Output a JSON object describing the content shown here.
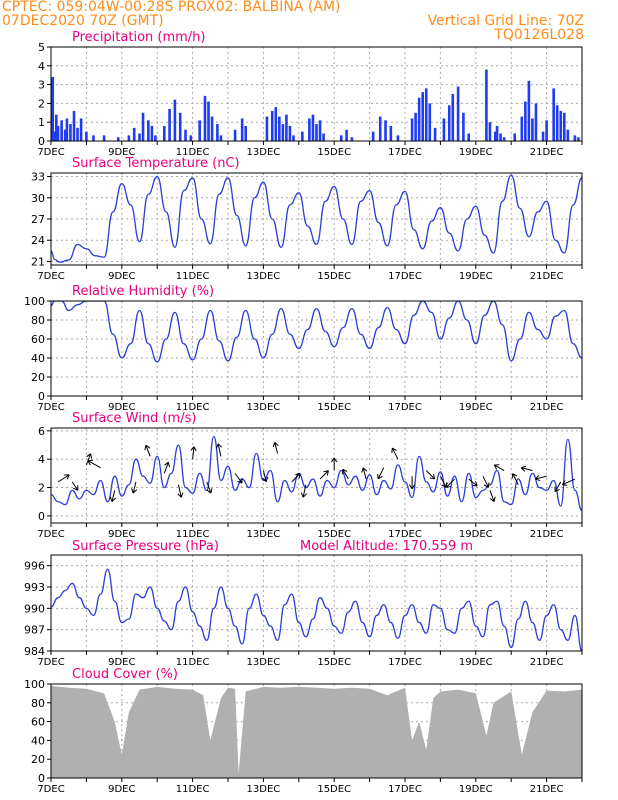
{
  "header": {
    "line1_left": "CPTEC:   059:04W-00:28S   PROX02: BALBINA (AM)",
    "line2_left": "07DEC2020 70Z (GMT)",
    "line2_right": "Vertical Grid Line: 70Z",
    "line3_right": "TQ0126L028"
  },
  "colors": {
    "header": "#ff8c1a",
    "title": "#e6007e",
    "line": "#2b3fd6",
    "bar": "#1f3cf0",
    "cloud": "#b0b0b0",
    "grid": "#aaaaaa"
  },
  "x_axis": {
    "start_day": 7,
    "end_day": 22,
    "labels": [
      "7DEC",
      "9DEC",
      "11DEC",
      "13DEC",
      "15DEC",
      "17DEC",
      "19DEC",
      "21DEC"
    ],
    "label_days": [
      7,
      9,
      11,
      13,
      15,
      17,
      19,
      21
    ]
  },
  "chart_data": [
    {
      "id": "precip",
      "type": "bar",
      "title": "Precipitation  (mm/h)",
      "ylim": [
        0,
        5
      ],
      "yticks": [
        0,
        1,
        2,
        3,
        4,
        5
      ],
      "x": [
        7.05,
        7.1,
        7.15,
        7.2,
        7.3,
        7.4,
        7.45,
        7.55,
        7.65,
        7.75,
        7.85,
        8.0,
        8.2,
        8.5,
        8.9,
        9.2,
        9.35,
        9.5,
        9.6,
        9.75,
        9.85,
        9.95,
        10.2,
        10.35,
        10.5,
        10.65,
        10.8,
        10.95,
        11.2,
        11.35,
        11.45,
        11.55,
        11.7,
        11.8,
        12.2,
        12.4,
        12.5,
        13.1,
        13.25,
        13.35,
        13.45,
        13.55,
        13.65,
        13.75,
        13.85,
        14.1,
        14.3,
        14.4,
        14.5,
        14.6,
        14.7,
        15.2,
        15.35,
        15.5,
        16.1,
        16.3,
        16.45,
        16.6,
        16.8,
        17.2,
        17.3,
        17.4,
        17.5,
        17.6,
        17.7,
        17.85,
        18.1,
        18.25,
        18.35,
        18.5,
        18.65,
        18.8,
        19.3,
        19.4,
        19.55,
        19.6,
        19.7,
        19.8,
        20.1,
        20.3,
        20.4,
        20.5,
        20.6,
        20.7,
        20.9,
        21.0,
        21.2,
        21.3,
        21.4,
        21.5,
        21.6,
        21.8,
        21.9
      ],
      "values": [
        3.4,
        0.5,
        1.4,
        0.8,
        1.1,
        0.6,
        1.2,
        0.9,
        1.6,
        0.7,
        1.2,
        0.5,
        0.3,
        0.3,
        0.2,
        0.3,
        0.7,
        0.4,
        1.5,
        1.1,
        0.8,
        0.3,
        0.8,
        1.7,
        2.2,
        1.5,
        0.6,
        0.3,
        1.1,
        2.4,
        2.1,
        1.3,
        0.9,
        0.3,
        0.6,
        1.2,
        0.8,
        1.3,
        1.6,
        1.8,
        1.3,
        0.9,
        1.4,
        0.8,
        0.3,
        0.5,
        1.2,
        1.4,
        0.9,
        1.1,
        0.4,
        0.3,
        0.6,
        0.2,
        0.5,
        1.3,
        1.1,
        0.8,
        0.3,
        1.2,
        1.5,
        2.3,
        2.6,
        2.8,
        2.0,
        0.7,
        1.2,
        1.9,
        2.5,
        2.9,
        1.5,
        0.4,
        3.8,
        1.0,
        0.5,
        0.8,
        0.4,
        0.2,
        0.4,
        1.3,
        2.1,
        3.2,
        1.2,
        2.0,
        0.5,
        1.1,
        2.8,
        1.9,
        1.6,
        1.5,
        0.6,
        0.3,
        0.2
      ]
    },
    {
      "id": "temp",
      "type": "line",
      "title": "Surface Temperature (nC)",
      "ylim": [
        20.5,
        33.5
      ],
      "yticks": [
        21,
        24,
        27,
        30,
        33
      ],
      "x": [
        7.0,
        7.1,
        7.25,
        7.5,
        7.75,
        8.0,
        8.25,
        8.5,
        8.75,
        9.0,
        9.25,
        9.5,
        9.75,
        10.0,
        10.25,
        10.5,
        10.75,
        11.0,
        11.25,
        11.5,
        11.75,
        12.0,
        12.25,
        12.5,
        12.75,
        13.0,
        13.25,
        13.5,
        13.75,
        14.0,
        14.25,
        14.5,
        14.75,
        15.0,
        15.25,
        15.5,
        15.75,
        16.0,
        16.25,
        16.5,
        16.75,
        17.0,
        17.25,
        17.5,
        17.75,
        18.0,
        18.25,
        18.5,
        18.75,
        19.0,
        19.25,
        19.5,
        19.75,
        20.0,
        20.25,
        20.5,
        20.75,
        21.0,
        21.25,
        21.5,
        21.75,
        22.0
      ],
      "values": [
        22.5,
        21.3,
        20.9,
        21.2,
        23.4,
        22.8,
        21.8,
        21.6,
        28.0,
        32.0,
        29.0,
        23.8,
        30.5,
        33.0,
        28.0,
        23.0,
        31.0,
        32.8,
        27.0,
        23.5,
        30.5,
        32.8,
        27.5,
        23.2,
        30.0,
        32.2,
        27.0,
        23.0,
        29.0,
        30.7,
        26.0,
        23.4,
        29.5,
        31.6,
        27.0,
        23.4,
        29.5,
        31.0,
        26.5,
        23.2,
        29.0,
        30.9,
        25.5,
        22.8,
        26.7,
        28.6,
        25.0,
        22.5,
        27.0,
        28.8,
        24.7,
        22.2,
        29.5,
        33.2,
        28.5,
        24.5,
        28.0,
        29.5,
        24.0,
        22.2,
        29.0,
        32.8
      ]
    },
    {
      "id": "rh",
      "type": "line",
      "title": "Relative Humidity  (%)",
      "ylim": [
        0,
        100
      ],
      "yticks": [
        0,
        20,
        40,
        60,
        80,
        100
      ],
      "x": [
        7.0,
        7.1,
        7.3,
        7.5,
        7.75,
        8.0,
        8.25,
        8.5,
        8.75,
        9.0,
        9.25,
        9.5,
        9.75,
        10.0,
        10.25,
        10.5,
        10.75,
        11.0,
        11.25,
        11.5,
        11.75,
        12.0,
        12.25,
        12.5,
        12.75,
        13.0,
        13.25,
        13.5,
        13.75,
        14.0,
        14.25,
        14.5,
        14.75,
        15.0,
        15.25,
        15.5,
        15.75,
        16.0,
        16.25,
        16.5,
        16.75,
        17.0,
        17.25,
        17.5,
        17.75,
        18.0,
        18.25,
        18.5,
        18.75,
        19.0,
        19.25,
        19.5,
        19.75,
        20.0,
        20.25,
        20.5,
        20.75,
        21.0,
        21.25,
        21.5,
        21.75,
        22.0
      ],
      "values": [
        95,
        100,
        100,
        90,
        96,
        100,
        100,
        100,
        65,
        40,
        55,
        90,
        55,
        36,
        60,
        88,
        55,
        38,
        60,
        90,
        58,
        37,
        62,
        90,
        60,
        40,
        65,
        92,
        65,
        50,
        70,
        92,
        68,
        52,
        72,
        92,
        65,
        50,
        72,
        93,
        70,
        55,
        85,
        100,
        88,
        60,
        82,
        100,
        80,
        55,
        85,
        100,
        75,
        37,
        60,
        88,
        70,
        60,
        84,
        90,
        55,
        40
      ]
    },
    {
      "id": "wind",
      "type": "line",
      "title": "Surface Wind  (m/s)",
      "ylim": [
        -0.5,
        6.2
      ],
      "yticks": [
        0,
        2,
        4,
        6
      ],
      "x": [
        7.0,
        7.2,
        7.4,
        7.6,
        7.8,
        8.0,
        8.2,
        8.4,
        8.6,
        8.8,
        9.0,
        9.2,
        9.4,
        9.6,
        9.8,
        10.0,
        10.2,
        10.4,
        10.6,
        10.8,
        11.0,
        11.2,
        11.4,
        11.6,
        11.8,
        12.0,
        12.2,
        12.4,
        12.6,
        12.8,
        13.0,
        13.2,
        13.4,
        13.6,
        13.8,
        14.0,
        14.2,
        14.4,
        14.6,
        14.8,
        15.0,
        15.2,
        15.4,
        15.6,
        15.8,
        16.0,
        16.2,
        16.4,
        16.6,
        16.8,
        17.0,
        17.2,
        17.4,
        17.6,
        17.8,
        18.0,
        18.2,
        18.4,
        18.6,
        18.8,
        19.0,
        19.2,
        19.4,
        19.6,
        19.8,
        20.0,
        20.2,
        20.4,
        20.6,
        20.8,
        21.0,
        21.2,
        21.4,
        21.6,
        21.8,
        22.0
      ],
      "values": [
        1.5,
        1.0,
        0.8,
        1.8,
        1.2,
        1.8,
        1.5,
        2.5,
        1.0,
        2.8,
        1.4,
        2.2,
        4.0,
        2.8,
        2.3,
        4.2,
        2.0,
        3.0,
        5.0,
        2.0,
        1.6,
        3.0,
        1.8,
        5.6,
        2.5,
        3.5,
        1.8,
        2.6,
        2.0,
        4.4,
        2.5,
        3.2,
        1.0,
        2.5,
        1.7,
        3.0,
        2.0,
        2.6,
        1.4,
        2.5,
        2.0,
        3.2,
        2.2,
        2.8,
        1.8,
        2.9,
        1.5,
        2.5,
        1.9,
        3.6,
        2.4,
        1.3,
        4.2,
        2.4,
        1.7,
        3.1,
        1.4,
        2.8,
        1.0,
        3.0,
        1.3,
        1.8,
        2.2,
        3.2,
        1.0,
        0.8,
        2.6,
        1.5,
        3.0,
        2.0,
        1.8,
        2.5,
        0.7,
        5.4,
        1.8,
        0.4
      ],
      "vectors": [
        {
          "x": 7.2,
          "y": 2.4,
          "u": 0.8,
          "v": 0.5
        },
        {
          "x": 7.6,
          "y": 2.4,
          "u": 0.4,
          "v": -0.6
        },
        {
          "x": 8.0,
          "y": 3.6,
          "u": 0.3,
          "v": 0.8
        },
        {
          "x": 8.4,
          "y": 3.4,
          "u": -0.9,
          "v": 0.5
        },
        {
          "x": 8.8,
          "y": 1.8,
          "u": -0.2,
          "v": -0.8
        },
        {
          "x": 9.4,
          "y": 2.4,
          "u": -0.2,
          "v": -0.8
        },
        {
          "x": 9.8,
          "y": 4.2,
          "u": -0.3,
          "v": 0.8
        },
        {
          "x": 10.2,
          "y": 3.0,
          "u": 0.3,
          "v": 0.8
        },
        {
          "x": 10.6,
          "y": 2.2,
          "u": 0.2,
          "v": -0.9
        },
        {
          "x": 11.0,
          "y": 4.0,
          "u": 0.1,
          "v": 0.9
        },
        {
          "x": 11.4,
          "y": 2.4,
          "u": 0.3,
          "v": -0.8
        },
        {
          "x": 11.8,
          "y": 4.2,
          "u": -0.2,
          "v": 0.9
        },
        {
          "x": 12.2,
          "y": 3.0,
          "u": 0.5,
          "v": -0.7
        },
        {
          "x": 13.0,
          "y": 3.2,
          "u": 0.2,
          "v": -0.8
        },
        {
          "x": 13.4,
          "y": 4.4,
          "u": -0.2,
          "v": 0.8
        },
        {
          "x": 13.8,
          "y": 2.4,
          "u": 0.6,
          "v": 0.6
        },
        {
          "x": 14.2,
          "y": 2.2,
          "u": -0.2,
          "v": -0.9
        },
        {
          "x": 14.6,
          "y": 2.6,
          "u": 0.6,
          "v": 0.6
        },
        {
          "x": 15.0,
          "y": 3.2,
          "u": 0.0,
          "v": 0.9
        },
        {
          "x": 15.4,
          "y": 2.6,
          "u": -0.4,
          "v": 0.7
        },
        {
          "x": 15.9,
          "y": 2.6,
          "u": -0.2,
          "v": 0.8
        },
        {
          "x": 16.4,
          "y": 3.4,
          "u": -0.4,
          "v": -0.8
        },
        {
          "x": 16.8,
          "y": 4.0,
          "u": -0.4,
          "v": 0.8
        },
        {
          "x": 17.2,
          "y": 2.8,
          "u": 0.0,
          "v": -0.9
        },
        {
          "x": 17.6,
          "y": 3.2,
          "u": 0.6,
          "v": -0.6
        },
        {
          "x": 18.0,
          "y": 2.8,
          "u": 0.4,
          "v": -0.8
        },
        {
          "x": 18.4,
          "y": 2.6,
          "u": -0.6,
          "v": -0.6
        },
        {
          "x": 18.8,
          "y": 2.6,
          "u": 0.6,
          "v": -0.5
        },
        {
          "x": 19.2,
          "y": 2.8,
          "u": 0.4,
          "v": -0.8
        },
        {
          "x": 19.4,
          "y": 1.8,
          "u": 0.3,
          "v": -0.8
        },
        {
          "x": 19.8,
          "y": 3.2,
          "u": -0.7,
          "v": 0.4
        },
        {
          "x": 20.2,
          "y": 2.2,
          "u": -0.4,
          "v": 0.8
        },
        {
          "x": 20.6,
          "y": 3.2,
          "u": -0.8,
          "v": 0.2
        },
        {
          "x": 21.0,
          "y": 2.8,
          "u": -0.8,
          "v": -0.2
        },
        {
          "x": 21.4,
          "y": 2.4,
          "u": -0.4,
          "v": -0.7
        },
        {
          "x": 21.8,
          "y": 2.6,
          "u": -0.9,
          "v": -0.4
        }
      ]
    },
    {
      "id": "pres",
      "type": "line",
      "title": "Surface Pressure (hPa)",
      "ylim": [
        984,
        997.5
      ],
      "yticks": [
        984,
        987,
        990,
        993,
        996
      ],
      "extra_label": "Model Altitude: 170.559  m",
      "x": [
        7.0,
        7.2,
        7.4,
        7.6,
        7.8,
        8.0,
        8.2,
        8.4,
        8.6,
        8.8,
        9.0,
        9.2,
        9.4,
        9.6,
        9.8,
        10.0,
        10.2,
        10.4,
        10.6,
        10.8,
        11.0,
        11.2,
        11.4,
        11.6,
        11.8,
        12.0,
        12.2,
        12.4,
        12.6,
        12.8,
        13.0,
        13.2,
        13.4,
        13.6,
        13.8,
        14.0,
        14.2,
        14.4,
        14.6,
        14.8,
        15.0,
        15.2,
        15.4,
        15.6,
        15.8,
        16.0,
        16.2,
        16.4,
        16.6,
        16.8,
        17.0,
        17.2,
        17.4,
        17.6,
        17.8,
        18.0,
        18.2,
        18.4,
        18.6,
        18.8,
        19.0,
        19.2,
        19.4,
        19.6,
        19.8,
        20.0,
        20.2,
        20.4,
        20.6,
        20.8,
        21.0,
        21.2,
        21.4,
        21.6,
        21.8,
        22.0
      ],
      "values": [
        990.2,
        991.5,
        992.5,
        993.5,
        991.5,
        990.0,
        989.0,
        992.0,
        995.5,
        991.0,
        988.0,
        988.5,
        992.0,
        991.5,
        993.0,
        990.0,
        988.2,
        987.0,
        991.0,
        993.0,
        989.5,
        987.5,
        985.5,
        990.0,
        993.0,
        990.0,
        987.5,
        985.0,
        990.0,
        992.0,
        989.0,
        987.5,
        985.5,
        990.5,
        992.0,
        988.0,
        986.0,
        988.5,
        991.5,
        990.0,
        987.5,
        986.5,
        989.5,
        991.0,
        988.0,
        986.0,
        989.0,
        990.5,
        988.0,
        985.8,
        989.0,
        990.5,
        988.0,
        986.5,
        990.5,
        990.0,
        987.0,
        986.5,
        990.0,
        991.0,
        987.5,
        986.0,
        990.5,
        991.0,
        987.5,
        984.5,
        988.5,
        991.0,
        988.0,
        985.5,
        989.0,
        990.5,
        987.0,
        985.5,
        989.0,
        984.0
      ]
    },
    {
      "id": "cloud",
      "type": "area",
      "title": "Cloud Cover  (%)",
      "ylim": [
        0,
        100
      ],
      "yticks": [
        0,
        20,
        40,
        60,
        80,
        100
      ],
      "x": [
        7.0,
        7.5,
        8.0,
        8.5,
        8.8,
        9.0,
        9.2,
        9.5,
        10.0,
        10.5,
        11.0,
        11.3,
        11.5,
        11.8,
        12.0,
        12.2,
        12.3,
        12.5,
        13.0,
        13.5,
        14.0,
        14.5,
        15.0,
        15.5,
        16.0,
        16.5,
        17.0,
        17.2,
        17.4,
        17.6,
        17.8,
        18.0,
        18.5,
        19.0,
        19.3,
        19.5,
        20.0,
        20.3,
        20.6,
        21.0,
        21.5,
        22.0
      ],
      "values": [
        98,
        96,
        95,
        90,
        60,
        25,
        70,
        94,
        97,
        95,
        94,
        88,
        40,
        85,
        96,
        95,
        5,
        92,
        97,
        96,
        97,
        96,
        95,
        96,
        95,
        88,
        96,
        40,
        60,
        30,
        85,
        92,
        94,
        90,
        45,
        80,
        92,
        25,
        70,
        93,
        92,
        94
      ]
    }
  ]
}
